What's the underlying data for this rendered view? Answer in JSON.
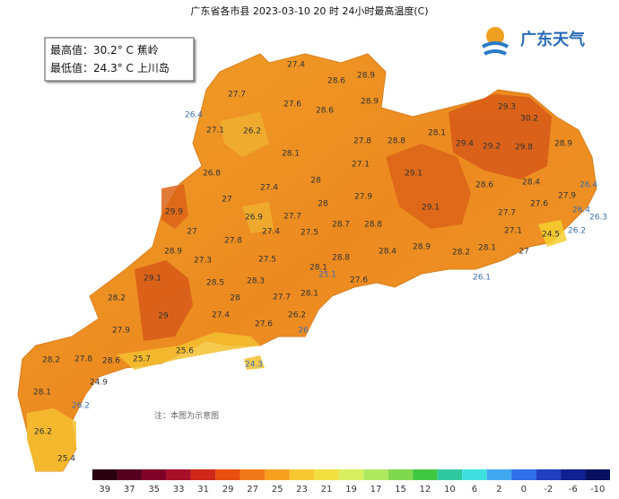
{
  "header": {
    "title": "广东省各市县 2023-03-10 20 时 24小时最高温度(C)"
  },
  "info": {
    "max": "最高值：30.2° C 蕉岭",
    "min": "最低值：24.3° C 上川岛"
  },
  "logo": "广东天气",
  "note": "注：本图为示意图",
  "stations": [
    27.4,
    28.6,
    28.9,
    27.7,
    27.6,
    28.6,
    28.9,
    29.3,
    30.2,
    26.4,
    27.1,
    26.2,
    28.1,
    27.8,
    28.8,
    29.4,
    29.2,
    29.8,
    28.9,
    28.1,
    27.1,
    29.1,
    26.8,
    28,
    28.6,
    28.4,
    26.4,
    27.9,
    27,
    27.4,
    28,
    27.9,
    29.9,
    27.6,
    26.4,
    26.3,
    29.1,
    26.9,
    27.7,
    27.7,
    28.8,
    28.7,
    27,
    27.4,
    27.5,
    27.1,
    26.2,
    24.5,
    27.8,
    28.9,
    28.4,
    28.8,
    28.2,
    28.1,
    27,
    28.9,
    27.3,
    27.5,
    28.1,
    25.1,
    26.1,
    27.6,
    29.1,
    28.5,
    28.3,
    28.2,
    28,
    27.7,
    28.1,
    29,
    27.4,
    26.2,
    27.6,
    27.9,
    26,
    25.6,
    25.7,
    28.2,
    27.8,
    28.6,
    24.3,
    24.9,
    28.1,
    26.2,
    26.2,
    25.4
  ],
  "legend": {
    "ticks": [
      39,
      37,
      35,
      33,
      31,
      29,
      27,
      25,
      23,
      21,
      19,
      17,
      15,
      12,
      10,
      6,
      2,
      0,
      -2,
      -6,
      -10
    ],
    "colors": [
      "#2a0010",
      "#55001e",
      "#800028",
      "#a8102a",
      "#d02818",
      "#e85010",
      "#f07818",
      "#f8a020",
      "#f8c830",
      "#f0e040",
      "#d8f060",
      "#b0e860",
      "#80d850",
      "#40c840",
      "#30c8a0",
      "#40e0e0",
      "#40a8f0",
      "#3070e8",
      "#2040c0",
      "#102090",
      "#081060"
    ]
  }
}
